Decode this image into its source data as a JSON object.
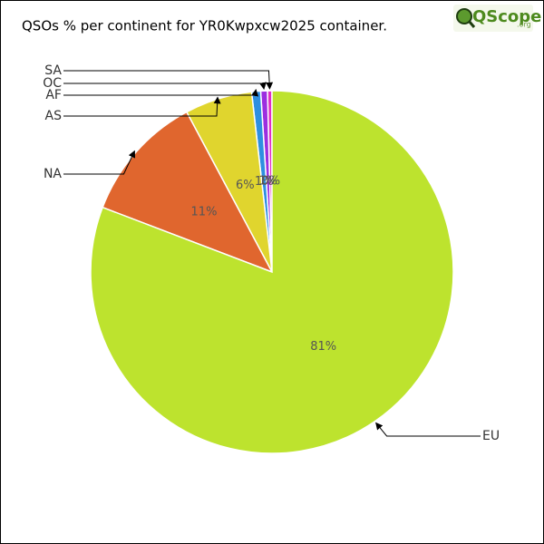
{
  "logo": {
    "text": "QScope",
    "suffix": ".org"
  },
  "chart_data": {
    "type": "pie",
    "title": "QSOs % per continent for YR0Kwpxcw2025 container.",
    "categories": [
      "SA",
      "OC",
      "AF",
      "AS",
      "NA",
      "EU"
    ],
    "values": [
      0.4,
      0.6,
      0.8,
      6.0,
      11.4,
      80.8
    ],
    "value_labels": [
      "0%",
      "1%",
      "1%",
      "6%",
      "11%",
      "81%"
    ],
    "colors": [
      "#e02ec4",
      "#9c2ee0",
      "#2e8fe0",
      "#e0d52e",
      "#e0662e",
      "#bde32e"
    ]
  }
}
